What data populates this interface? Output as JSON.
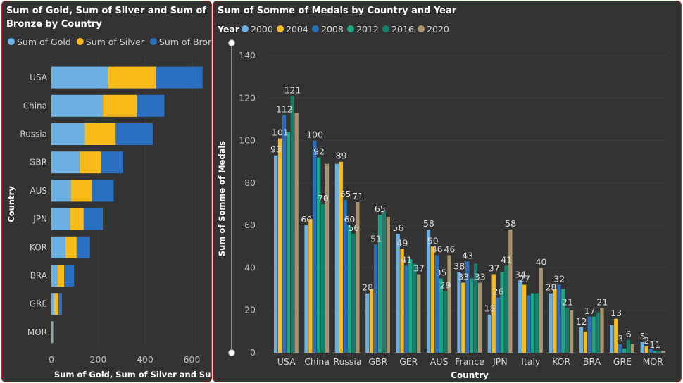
{
  "chart_data": [
    {
      "type": "bar",
      "orientation": "horizontal",
      "stacked": true,
      "title": "Sum of Gold, Sum of Silver and Sum of Bronze by Country",
      "xlabel": "Sum of Gold, Sum of Silver and Sum ...",
      "ylabel": "Country",
      "xlim": [
        0,
        650
      ],
      "xticks": [
        "0",
        "200",
        "400",
        "600"
      ],
      "legend_position": "top",
      "categories": [
        "USA",
        "China",
        "Russia",
        "GBR",
        "AUS",
        "JPN",
        "KOR",
        "BRA",
        "GRE",
        "MOR"
      ],
      "series": [
        {
          "name": "Sum of Gold",
          "color": "#6cb0e4",
          "values": [
            243,
            220,
            143,
            120,
            83,
            80,
            60,
            25,
            12,
            5
          ]
        },
        {
          "name": "Sum of Silver",
          "color": "#f9bb1a",
          "values": [
            205,
            145,
            132,
            92,
            90,
            58,
            48,
            30,
            18,
            2
          ]
        },
        {
          "name": "Sum of Bronze",
          "color": "#2a6fc0",
          "values": [
            198,
            118,
            158,
            95,
            93,
            82,
            57,
            42,
            15,
            3
          ]
        }
      ]
    },
    {
      "type": "bar",
      "title": "Sum of Somme of Medals by Country and Year",
      "xlabel": "Country",
      "ylabel": "Sum of Somme of Medals",
      "ylim": [
        0,
        140
      ],
      "yticks": [
        0,
        20,
        40,
        60,
        80,
        100,
        120,
        140
      ],
      "legend_title": "Year",
      "legend_position": "top",
      "categories": [
        "USA",
        "China",
        "Russia",
        "GBR",
        "GER",
        "AUS",
        "France",
        "JPN",
        "Italy",
        "KOR",
        "BRA",
        "GRE",
        "MOR"
      ],
      "series": [
        {
          "name": "2000",
          "color": "#6cb0e4",
          "values": [
            93,
            60,
            89,
            28,
            56,
            58,
            38,
            18,
            34,
            28,
            12,
            13,
            5
          ]
        },
        {
          "name": "2004",
          "color": "#f9bb1a",
          "values": [
            101,
            63,
            90,
            30,
            49,
            50,
            33,
            37,
            32,
            30,
            10,
            16,
            3
          ]
        },
        {
          "name": "2008",
          "color": "#2a6fc0",
          "values": [
            112,
            100,
            72,
            51,
            41,
            46,
            43,
            26,
            27,
            32,
            17,
            4,
            2
          ]
        },
        {
          "name": "2012",
          "color": "#1aa584",
          "values": [
            104,
            92,
            60,
            65,
            44,
            35,
            35,
            38,
            28,
            30,
            17,
            2,
            1
          ]
        },
        {
          "name": "2016",
          "color": "#14806a",
          "values": [
            121,
            70,
            56,
            67,
            42,
            29,
            42,
            41,
            28,
            21,
            19,
            6,
            1
          ]
        },
        {
          "name": "2020",
          "color": "#a8946e",
          "values": [
            113,
            89,
            71,
            64,
            37,
            46,
            33,
            58,
            40,
            20,
            21,
            4,
            1
          ]
        }
      ],
      "data_labels": [
        {
          "category": "USA",
          "series": "2000",
          "text": "93"
        },
        {
          "category": "USA",
          "series": "2004",
          "text": "101"
        },
        {
          "category": "USA",
          "series": "2008",
          "text": "112"
        },
        {
          "category": "USA",
          "series": "2016",
          "text": "121"
        },
        {
          "category": "China",
          "series": "2000",
          "text": "60"
        },
        {
          "category": "China",
          "series": "2008",
          "text": "100"
        },
        {
          "category": "China",
          "series": "2012",
          "text": "92"
        },
        {
          "category": "China",
          "series": "2016",
          "text": "70"
        },
        {
          "category": "Russia",
          "series": "2004",
          "text": "89"
        },
        {
          "category": "Russia",
          "series": "2012",
          "text": "60"
        },
        {
          "category": "Russia",
          "series": "2008",
          "text": "65"
        },
        {
          "category": "Russia",
          "series": "2016",
          "text": "56"
        },
        {
          "category": "Russia",
          "series": "2020",
          "text": "71"
        },
        {
          "category": "GBR",
          "series": "2000",
          "text": "28"
        },
        {
          "category": "GBR",
          "series": "2008",
          "text": "51"
        },
        {
          "category": "GBR",
          "series": "2012",
          "text": "65"
        },
        {
          "category": "GER",
          "series": "2000",
          "text": "56"
        },
        {
          "category": "GER",
          "series": "2004",
          "text": "49"
        },
        {
          "category": "GER",
          "series": "2008",
          "text": "41"
        },
        {
          "category": "GER",
          "series": "2020",
          "text": "37"
        },
        {
          "category": "AUS",
          "series": "2000",
          "text": "58"
        },
        {
          "category": "AUS",
          "series": "2004",
          "text": "50"
        },
        {
          "category": "AUS",
          "series": "2008",
          "text": "46"
        },
        {
          "category": "AUS",
          "series": "2012",
          "text": "35"
        },
        {
          "category": "AUS",
          "series": "2016",
          "text": "29"
        },
        {
          "category": "AUS",
          "series": "2020",
          "text": "46"
        },
        {
          "category": "France",
          "series": "2000",
          "text": "38"
        },
        {
          "category": "France",
          "series": "2004",
          "text": "33"
        },
        {
          "category": "France",
          "series": "2008",
          "text": "43"
        },
        {
          "category": "France",
          "series": "2020",
          "text": "33"
        },
        {
          "category": "JPN",
          "series": "2000",
          "text": "18"
        },
        {
          "category": "JPN",
          "series": "2004",
          "text": "37"
        },
        {
          "category": "JPN",
          "series": "2008",
          "text": "26"
        },
        {
          "category": "JPN",
          "series": "2016",
          "text": "41"
        },
        {
          "category": "JPN",
          "series": "2020",
          "text": "58"
        },
        {
          "category": "Italy",
          "series": "2000",
          "text": "34"
        },
        {
          "category": "Italy",
          "series": "2004",
          "text": "27"
        },
        {
          "category": "Italy",
          "series": "2020",
          "text": "40"
        },
        {
          "category": "KOR",
          "series": "2000",
          "text": "28"
        },
        {
          "category": "KOR",
          "series": "2008",
          "text": "32"
        },
        {
          "category": "KOR",
          "series": "2016",
          "text": "21"
        },
        {
          "category": "BRA",
          "series": "2000",
          "text": "12"
        },
        {
          "category": "BRA",
          "series": "2008",
          "text": "17"
        },
        {
          "category": "BRA",
          "series": "2020",
          "text": "21"
        },
        {
          "category": "GRE",
          "series": "2004",
          "text": "13"
        },
        {
          "category": "GRE",
          "series": "2008",
          "text": "3"
        },
        {
          "category": "GRE",
          "series": "2016",
          "text": "6"
        },
        {
          "category": "MOR",
          "series": "2000",
          "text": "5"
        },
        {
          "category": "MOR",
          "series": "2004",
          "text": "2"
        },
        {
          "category": "MOR",
          "series": "2012",
          "text": "11"
        }
      ]
    }
  ]
}
